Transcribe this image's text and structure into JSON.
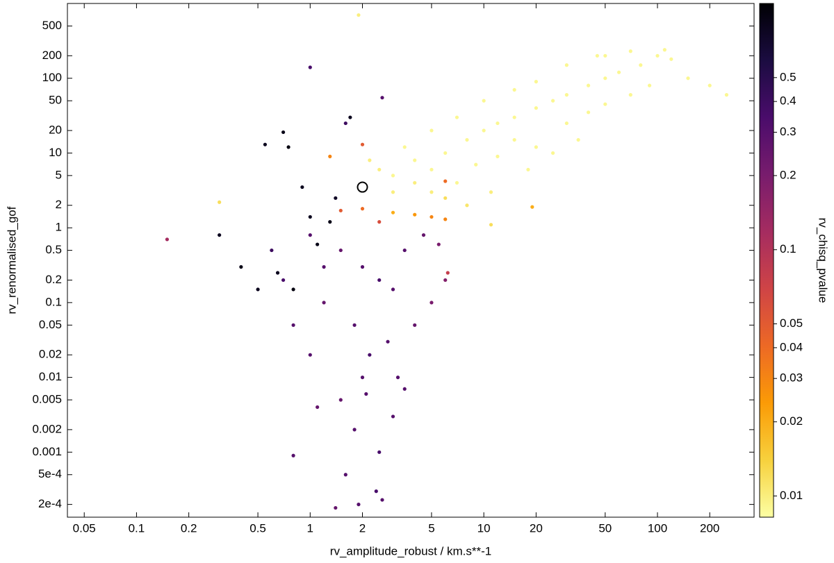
{
  "chart_data": {
    "type": "scatter",
    "x_label": "rv_amplitude_robust / km.s**-1",
    "y_label": "rv_renormalised_gof",
    "colorbar_label": "rv_chisq_pvalue",
    "xscale": "log",
    "yscale": "log",
    "cscale": "log",
    "xlim": [
      0.04,
      360
    ],
    "ylim": [
      0.000135,
      1000
    ],
    "clim": [
      0.0082,
      1
    ],
    "xticks": [
      0.05,
      0.1,
      0.2,
      0.5,
      1,
      2,
      5,
      10,
      20,
      50,
      100,
      200
    ],
    "yticks": [
      {
        "value": 0.0002,
        "label": "2e-4"
      },
      {
        "value": 0.0005,
        "label": "5e-4"
      },
      0.001,
      0.002,
      0.005,
      0.01,
      0.02,
      0.05,
      0.1,
      0.2,
      0.5,
      1,
      2,
      5,
      10,
      20,
      50,
      100,
      200,
      500
    ],
    "cticks": [
      0.01,
      0.02,
      0.03,
      0.04,
      0.05,
      0.1,
      0.2,
      0.3,
      0.4,
      0.5
    ],
    "colormap": [
      "#fcffa4",
      "#f7d13d",
      "#fb9b06",
      "#ed6925",
      "#cf4446",
      "#a52c60",
      "#781c6d",
      "#4a0c6b",
      "#1b0c41",
      "#000004"
    ],
    "highlight": {
      "x": 2,
      "y": 3.5
    },
    "points": {
      "x": [
        3,
        4,
        5,
        6,
        8,
        10,
        12,
        15,
        20,
        25,
        30,
        40,
        50,
        60,
        80,
        100,
        120,
        150,
        200,
        250,
        7,
        9,
        12,
        15,
        20,
        30,
        40,
        50,
        70,
        90,
        3,
        4,
        5,
        6,
        2.5,
        3.5,
        5,
        7,
        10,
        15,
        20,
        30,
        50,
        70,
        110,
        8,
        11,
        18,
        25,
        35,
        0.3,
        1.9,
        11,
        45,
        2.2,
        3,
        4,
        5,
        2,
        1.5,
        6,
        2.5,
        19,
        6,
        2,
        1.3,
        1,
        1.5,
        2,
        2.5,
        3,
        1.2,
        1.8,
        2.2,
        2,
        1.5,
        1.8,
        2.5,
        1.6,
        1.4,
        1.9,
        2.4,
        2.6,
        0.8,
        3,
        4,
        5,
        6,
        0.6,
        0.7,
        0.8,
        1,
        3.5,
        4.5,
        0.15,
        1,
        2.6,
        1.6,
        1.2,
        2.8,
        3.2,
        1.1,
        2.1,
        3.5,
        5.5,
        6.2,
        0.55,
        0.7,
        0.75,
        0.3,
        0.4,
        0.5,
        0.8,
        1,
        1.3,
        1.7,
        1.1,
        0.9,
        1.4,
        0.65
      ],
      "y": [
        5,
        8,
        6,
        10,
        15,
        20,
        25,
        30,
        40,
        50,
        60,
        80,
        100,
        120,
        150,
        200,
        180,
        100,
        80,
        60,
        4,
        7,
        9,
        15,
        12,
        25,
        35,
        45,
        60,
        80,
        3,
        4,
        3,
        2.5,
        6,
        12,
        20,
        30,
        50,
        70,
        90,
        150,
        200,
        230,
        240,
        2,
        3,
        6,
        10,
        15,
        2.2,
        700,
        1.1,
        200,
        8,
        1.6,
        1.5,
        1.4,
        1.8,
        1.7,
        1.3,
        1.2,
        1.9,
        4.2,
        13,
        9,
        0.8,
        0.5,
        0.3,
        0.2,
        0.15,
        0.1,
        0.05,
        0.02,
        0.01,
        0.005,
        0.002,
        0.001,
        0.0005,
        0.00018,
        0.0002,
        0.0003,
        0.00023,
        0.0009,
        0.003,
        0.05,
        0.1,
        0.2,
        0.5,
        0.2,
        0.05,
        0.02,
        0.5,
        0.8,
        0.7,
        140,
        55,
        25,
        0.3,
        0.03,
        0.01,
        0.004,
        0.006,
        0.007,
        0.6,
        0.25,
        13,
        19,
        12,
        0.8,
        0.3,
        0.15,
        0.15,
        1.4,
        1.2,
        30,
        0.6,
        3.5,
        2.5,
        0.25
      ],
      "c": [
        0.009,
        0.009,
        0.009,
        0.009,
        0.009,
        0.009,
        0.009,
        0.009,
        0.009,
        0.009,
        0.009,
        0.009,
        0.009,
        0.009,
        0.009,
        0.009,
        0.009,
        0.009,
        0.009,
        0.009,
        0.009,
        0.009,
        0.009,
        0.009,
        0.009,
        0.009,
        0.009,
        0.009,
        0.009,
        0.009,
        0.01,
        0.01,
        0.01,
        0.012,
        0.01,
        0.009,
        0.009,
        0.009,
        0.009,
        0.009,
        0.009,
        0.009,
        0.009,
        0.009,
        0.009,
        0.011,
        0.01,
        0.009,
        0.009,
        0.009,
        0.012,
        0.01,
        0.012,
        0.009,
        0.01,
        0.02,
        0.025,
        0.03,
        0.04,
        0.05,
        0.03,
        0.06,
        0.02,
        0.04,
        0.05,
        0.03,
        0.3,
        0.25,
        0.3,
        0.35,
        0.3,
        0.25,
        0.3,
        0.35,
        0.3,
        0.25,
        0.3,
        0.35,
        0.3,
        0.25,
        0.3,
        0.35,
        0.3,
        0.3,
        0.3,
        0.25,
        0.2,
        0.18,
        0.4,
        0.35,
        0.3,
        0.3,
        0.3,
        0.25,
        0.12,
        0.35,
        0.3,
        0.4,
        0.3,
        0.3,
        0.3,
        0.25,
        0.3,
        0.3,
        0.2,
        0.08,
        0.8,
        0.85,
        0.9,
        0.8,
        0.85,
        0.8,
        0.9,
        0.8,
        0.85,
        0.8,
        0.85,
        0.8,
        0.75,
        0.8
      ]
    }
  }
}
